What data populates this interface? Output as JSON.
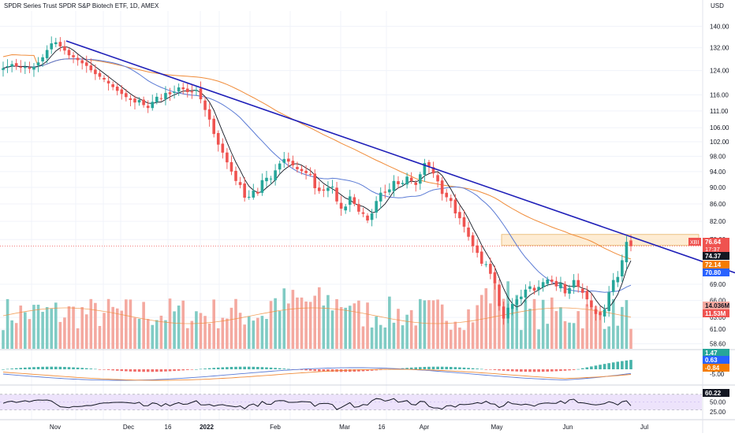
{
  "chart_data": {
    "type": "candlestick",
    "title": "SPDR Series Trust SPDR S&P Biotech ETF, 1D, AMEX",
    "symbol": "XBI",
    "currency": "USD",
    "price_axis": {
      "ticks": [
        "140.00",
        "132.00",
        "124.00",
        "116.00",
        "111.00",
        "106.00",
        "102.00",
        "98.00",
        "94.00",
        "90.00",
        "86.00",
        "82.00",
        "78.00",
        "69.00",
        "66.00",
        "63.00",
        "61.00",
        "58.60"
      ],
      "tick_values": [
        140,
        132,
        124,
        116,
        111,
        106,
        102,
        98,
        94,
        90,
        86,
        82,
        78,
        69,
        66,
        63,
        61,
        58.6
      ],
      "scale": "log",
      "range": [
        57.8,
        146
      ]
    },
    "time_axis": {
      "labels": [
        "Nov",
        "Dec",
        "16",
        "2022",
        "Feb",
        "Mar",
        "16",
        "Apr",
        "May",
        "Jun",
        "Jul"
      ]
    },
    "price_badges": [
      {
        "value": "76.64",
        "sub": "17:37",
        "prefix": "XBI",
        "color": "#ef5350"
      },
      {
        "value": "74.37",
        "color": "#131722"
      },
      {
        "value": "72.14",
        "color": "#f57c00"
      },
      {
        "value": "70.80",
        "color": "#2962ff"
      },
      {
        "value": "14.036M",
        "color": "#f4a9a0",
        "text_color": "#131722"
      },
      {
        "value": "11.53M",
        "color": "#ef5350"
      }
    ],
    "macd": {
      "ticks": [
        "5.00",
        "-5.00"
      ],
      "badges": [
        {
          "value": "1.47",
          "color": "#26a69a"
        },
        {
          "value": "0.63",
          "color": "#2962ff"
        },
        {
          "value": "-0.84",
          "color": "#f57c00"
        }
      ]
    },
    "rsi": {
      "ticks": [
        "75.00",
        "50.00",
        "25.00"
      ],
      "value": "60.22",
      "band": [
        30,
        70
      ]
    },
    "closes": [
      124.8,
      125.5,
      126.2,
      125.4,
      125.0,
      125.2,
      124.6,
      125.3,
      126.8,
      128.6,
      131.2,
      133.6,
      134.0,
      132.5,
      131.0,
      129.3,
      128.6,
      127.6,
      126.5,
      125.6,
      124.1,
      122.8,
      121.9,
      121.0,
      119.7,
      118.5,
      117.3,
      116.3,
      115.3,
      114.4,
      113.6,
      114.4,
      112.8,
      111.9,
      113.8,
      115.4,
      114.9,
      116.6,
      116.2,
      117.0,
      118.4,
      117.8,
      116.9,
      116.8,
      117.6,
      114.6,
      111.3,
      108.4,
      104.2,
      101.2,
      99.0,
      96.4,
      94.0,
      91.6,
      90.6,
      87.5,
      87.7,
      89.2,
      88.5,
      91.8,
      92.4,
      92.2,
      94.3,
      96.1,
      97.3,
      96.6,
      95.6,
      94.6,
      94.1,
      93.6,
      93.3,
      89.8,
      89.1,
      89.2,
      89.9,
      90.2,
      86.6,
      84.9,
      85.4,
      87.8,
      86.0,
      84.2,
      83.7,
      82.2,
      83.8,
      86.7,
      88.7,
      88.7,
      89.5,
      91.6,
      90.8,
      91.1,
      92.7,
      91.6,
      90.6,
      93.3,
      96.2,
      95.4,
      93.5,
      91.5,
      88.4,
      87.6,
      86.7,
      83.8,
      82.7,
      80.8,
      78.6,
      76.6,
      75.2,
      73.0,
      72.9,
      71.0,
      69.2,
      65.0,
      62.8,
      64.7,
      65.4,
      66.2,
      66.7,
      68.0,
      68.6,
      67.8,
      68.5,
      69.4,
      69.9,
      69.5,
      68.6,
      69.2,
      67.3,
      68.3,
      69.8,
      68.5,
      67.4,
      66.2,
      64.8,
      63.6,
      63.4,
      64.4,
      67.5,
      69.8,
      70.4,
      73.7,
      77.5,
      76.6
    ],
    "ma_fast_label": "10-period",
    "volume_note": "volume histogram bars colored by up/down day",
    "trendline": {
      "from_value": 134.5,
      "to_value": 71.2
    },
    "resistance_zone": [
      76.8,
      79.1
    ]
  },
  "colors": {
    "up": "#26a69a",
    "down": "#ef5350",
    "vol_up": "#80cbc4",
    "vol_down": "#f4a9a0",
    "ma_fast": "#131722",
    "ma_mid": "#5b7bd5",
    "ma_slow": "#f08c3a",
    "trendline": "#1f1fb8",
    "zone": "#fde6c4",
    "rsi_band": "#ede3fb",
    "grid": "#f0f3fa",
    "axis_text": "#131722"
  }
}
